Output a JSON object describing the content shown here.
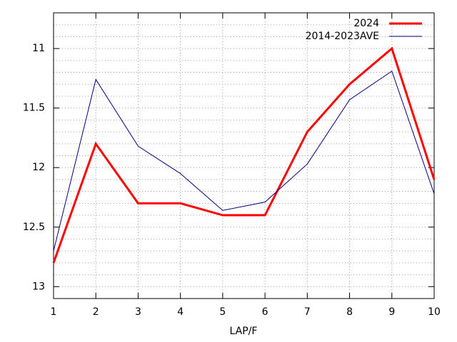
{
  "chart_data": {
    "type": "line",
    "xlabel": "LAP/F",
    "x": [
      1,
      2,
      3,
      4,
      5,
      6,
      7,
      8,
      9,
      10
    ],
    "series": [
      {
        "name": "2024",
        "color": "#ff0000",
        "values": [
          12.8,
          11.8,
          12.3,
          12.3,
          12.4,
          12.4,
          11.7,
          11.3,
          11.0,
          12.1
        ]
      },
      {
        "name": "2014-2023AVE",
        "color": "#000080",
        "values": [
          12.7,
          11.26,
          11.82,
          12.05,
          12.36,
          12.29,
          11.97,
          11.43,
          11.19,
          12.22
        ]
      }
    ],
    "xlim": [
      1,
      10
    ],
    "xticks": [
      1,
      2,
      3,
      4,
      5,
      6,
      7,
      8,
      9,
      10
    ],
    "ylim": [
      13.1,
      10.7
    ],
    "yticks": [
      11,
      11.5,
      12,
      12.5,
      13
    ],
    "y_reversed": true,
    "grid": true,
    "legend": "top-right"
  }
}
